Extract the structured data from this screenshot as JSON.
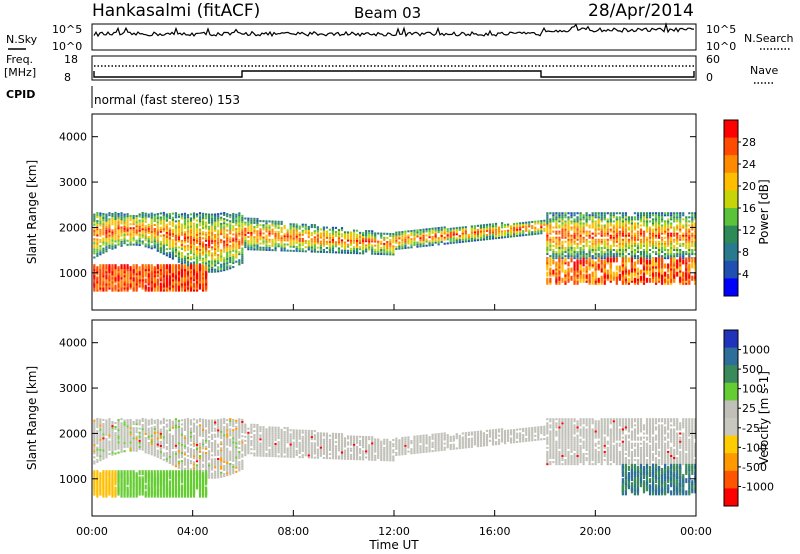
{
  "header": {
    "station": "Hankasalmi (fitACF)",
    "beam": "Beam 03",
    "date": "28/Apr/2014"
  },
  "top_panels": {
    "nsky_label": "N.Sky",
    "nsky_ticks": [
      "10^5",
      "10^0"
    ],
    "nsearch_label": "N.Search",
    "nsearch_ticks": [
      "10^5",
      "10^0"
    ],
    "freq_label_1": "Freq.",
    "freq_label_2": "[MHz]",
    "freq_ticks": [
      "18",
      "8"
    ],
    "nave_label": "Nave",
    "nave_ticks": [
      "60",
      "0"
    ],
    "cpid_label": "CPID",
    "cpid_text": "normal (fast stereo) 153"
  },
  "chart_data": [
    {
      "type": "heatmap",
      "title": "",
      "ylabel": "Slant Range [km]",
      "xlabel": "",
      "ylim": [
        180,
        4500
      ],
      "yticks": [
        "1000",
        "2000",
        "3000",
        "4000"
      ],
      "xlim_hours": [
        0,
        24
      ],
      "colorbar": {
        "label": "Power [dB]",
        "ticks": [
          "28",
          "24",
          "20",
          "16",
          "12",
          "8",
          "4"
        ],
        "colors": [
          "#ff0000",
          "#ff4a00",
          "#ff8a00",
          "#ffbf00",
          "#c8d40a",
          "#5cc23c",
          "#2e8b57",
          "#2a7a8f",
          "#1f4fb0",
          "#0000ff"
        ]
      }
    },
    {
      "type": "heatmap",
      "title": "",
      "ylabel": "Slant Range [km]",
      "xlabel": "Time UT",
      "ylim": [
        180,
        4500
      ],
      "yticks": [
        "1000",
        "2000",
        "3000",
        "4000"
      ],
      "xticks": [
        "00:00",
        "04:00",
        "08:00",
        "12:00",
        "16:00",
        "20:00",
        "00:00"
      ],
      "colorbar": {
        "label": "Velocity [m s-1]",
        "ticks": [
          "1000",
          "500",
          "100",
          "25",
          "-25",
          "-100",
          "-500",
          "-1000"
        ],
        "colors": [
          "#2233bb",
          "#2e6e9a",
          "#3a8a5c",
          "#66cc33",
          "#c0c0b8",
          "#c8c8c0",
          "#ffcc00",
          "#ff9900",
          "#ff5500",
          "#ff0000"
        ]
      }
    }
  ],
  "colors": {
    "ground_scatter": "#c0c0b8",
    "axis": "#000000"
  }
}
